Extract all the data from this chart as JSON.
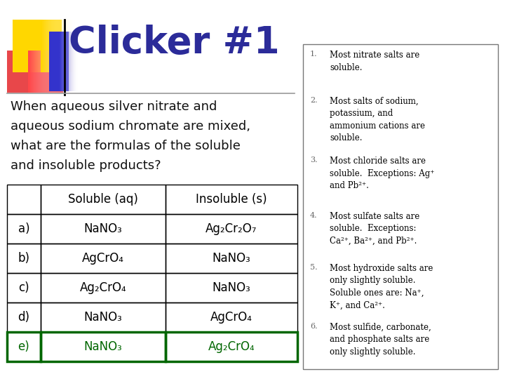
{
  "title": "Clicker #1",
  "title_color": "#2b2b99",
  "bg_color": "#ffffff",
  "question_lines": [
    "When aqueous silver nitrate and",
    "aqueous sodium chromate are mixed,",
    "what are the formulas of the soluble",
    "and insoluble products?"
  ],
  "table_headers": [
    "",
    "Soluble (aq)",
    "Insoluble (s)"
  ],
  "table_rows": [
    [
      "a)",
      "NaNO₃",
      "Ag₂Cr₂O₇"
    ],
    [
      "b)",
      "AgCrO₄",
      "NaNO₃"
    ],
    [
      "c)",
      "Ag₂CrO₄",
      "NaNO₃"
    ],
    [
      "d)",
      "NaNO₃",
      "AgCrO₄"
    ],
    [
      "e)",
      "NaNO₃",
      "Ag₂CrO₄"
    ]
  ],
  "correct_row": 4,
  "correct_row_color": "#006600",
  "rules_nums": [
    "1.",
    "2.",
    "3.",
    "4.",
    "5.",
    "6."
  ],
  "rules": [
    "Most nitrate salts are\nsoluble.",
    "Most salts of sodium,\npotassium, and\nammonium cations are\nsoluble.",
    "Most chloride salts are\nsoluble.  Exceptions: Ag⁺\nand Pb²⁺.",
    "Most sulfate salts are\nsoluble.  Exceptions:\nCa²⁺, Ba²⁺, and Pb²⁺.",
    "Most hydroxide salts are\nonly slightly soluble.\nSoluble ones are: Na⁺,\nK⁺, and Ca²⁺.",
    "Most sulfide, carbonate,\nand phosphate salts are\nonly slightly soluble."
  ],
  "fig_w": 7.2,
  "fig_h": 5.4,
  "dpi": 100
}
